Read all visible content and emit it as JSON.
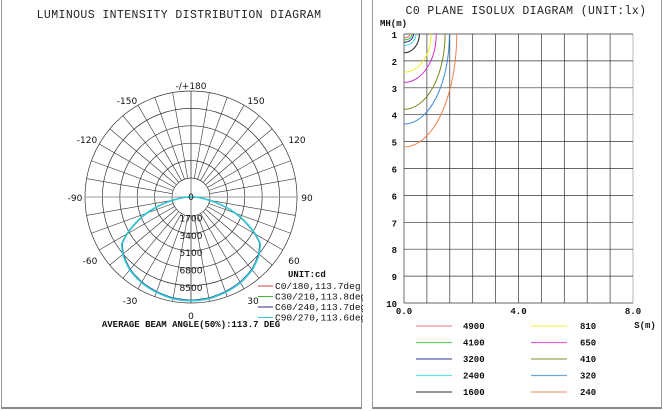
{
  "chart_data": [
    {
      "type": "polar",
      "title": "LUMINOUS INTENSITY DISTRIBUTION DIAGRAM",
      "unit_label": "UNIT:cd",
      "angle_labels": [
        {
          "text": "-/+180",
          "angle": 180
        },
        {
          "text": "-150",
          "angle": -150
        },
        {
          "text": "150",
          "angle": 150
        },
        {
          "text": "-120",
          "angle": -120
        },
        {
          "text": "120",
          "angle": 120
        },
        {
          "text": "-90",
          "angle": -90
        },
        {
          "text": "90",
          "angle": 90
        },
        {
          "text": "-60",
          "angle": -60
        },
        {
          "text": "60",
          "angle": 60
        },
        {
          "text": "-30",
          "angle": -30
        },
        {
          "text": "30",
          "angle": 30
        },
        {
          "text": "0",
          "angle": 0
        }
      ],
      "radial_ticks": [
        "0",
        "1700",
        "3400",
        "5100",
        "6800",
        "8500"
      ],
      "rmax": 8500,
      "series": [
        {
          "name": "C0/180,113.7deg",
          "color": "#d23c3c",
          "angles": [
            0,
            10,
            20,
            30,
            40,
            50,
            56,
            60,
            70,
            80,
            90
          ],
          "values": [
            8400,
            8350,
            8200,
            8000,
            7700,
            7200,
            6750,
            6000,
            3800,
            1500,
            0
          ]
        },
        {
          "name": "C30/210,113.8deg",
          "color": "#3cbe3c",
          "angles": [
            0,
            10,
            20,
            30,
            40,
            50,
            56,
            60,
            70,
            80,
            90
          ],
          "values": [
            8400,
            8350,
            8200,
            8000,
            7700,
            7200,
            6800,
            6000,
            3800,
            1500,
            0
          ]
        },
        {
          "name": "C60/240,113.7deg",
          "color": "#2a2a8c",
          "angles": [
            0,
            10,
            20,
            30,
            40,
            50,
            56,
            60,
            70,
            80,
            90
          ],
          "values": [
            8400,
            8350,
            8200,
            8000,
            7700,
            7200,
            6750,
            6000,
            3800,
            1500,
            0
          ]
        },
        {
          "name": "C90/270,113.6deg",
          "color": "#2ec8d8",
          "angles": [
            0,
            10,
            20,
            30,
            40,
            50,
            56,
            60,
            70,
            80,
            90
          ],
          "values": [
            8450,
            8400,
            8250,
            8050,
            7750,
            7250,
            6800,
            6050,
            3850,
            1500,
            0
          ]
        }
      ],
      "footer": "AVERAGE BEAM ANGLE(50%):113.7 DEG"
    },
    {
      "type": "contour",
      "title": "C0 PLANE ISOLUX DIAGRAM (UNIT:lx)",
      "ylabel": "MH(m)",
      "xlabel": "S(m)",
      "y_ticks": [
        "1",
        "2",
        "3",
        "4",
        "5",
        "6",
        "6",
        "7",
        "8",
        "9",
        "10"
      ],
      "x_ticks": [
        "0.0",
        "4.0",
        "8.0"
      ],
      "xlim": [
        0,
        8
      ],
      "ylim": [
        1,
        10
      ],
      "grid": {
        "columns": 10,
        "rows": 10
      },
      "levels": [
        {
          "value": "4900",
          "color": "#e06878",
          "rx": 0.08,
          "ry": 0.14
        },
        {
          "value": "4100",
          "color": "#30c030",
          "rx": 0.11,
          "ry": 0.22
        },
        {
          "value": "3200",
          "color": "#2a2a90",
          "rx": 0.13,
          "ry": 0.31
        },
        {
          "value": "2400",
          "color": "#30d8e0",
          "rx": 0.165,
          "ry": 0.43
        },
        {
          "value": "1600",
          "color": "#202020",
          "rx": 0.21,
          "ry": 0.7
        },
        {
          "value": "810",
          "color": "#f0f020",
          "rx": 0.37,
          "ry": 1.42
        },
        {
          "value": "650",
          "color": "#d030d0",
          "rx": 0.44,
          "ry": 1.8
        },
        {
          "value": "410",
          "color": "#7a8a20",
          "rx": 0.56,
          "ry": 2.8
        },
        {
          "value": "320",
          "color": "#3a8ad8",
          "rx": 0.62,
          "ry": 3.35
        },
        {
          "value": "240",
          "color": "#f08050",
          "rx": 0.72,
          "ry": 4.2
        }
      ]
    }
  ],
  "left": {
    "title": "LUMINOUS INTENSITY DISTRIBUTION DIAGRAM",
    "unit": "UNIT:cd",
    "footer": "AVERAGE BEAM ANGLE(50%):113.7 DEG"
  },
  "right": {
    "title": "C0 PLANE ISOLUX DIAGRAM (UNIT:lx)",
    "ylabel": "MH(m)",
    "xlabel": "S(m)"
  }
}
